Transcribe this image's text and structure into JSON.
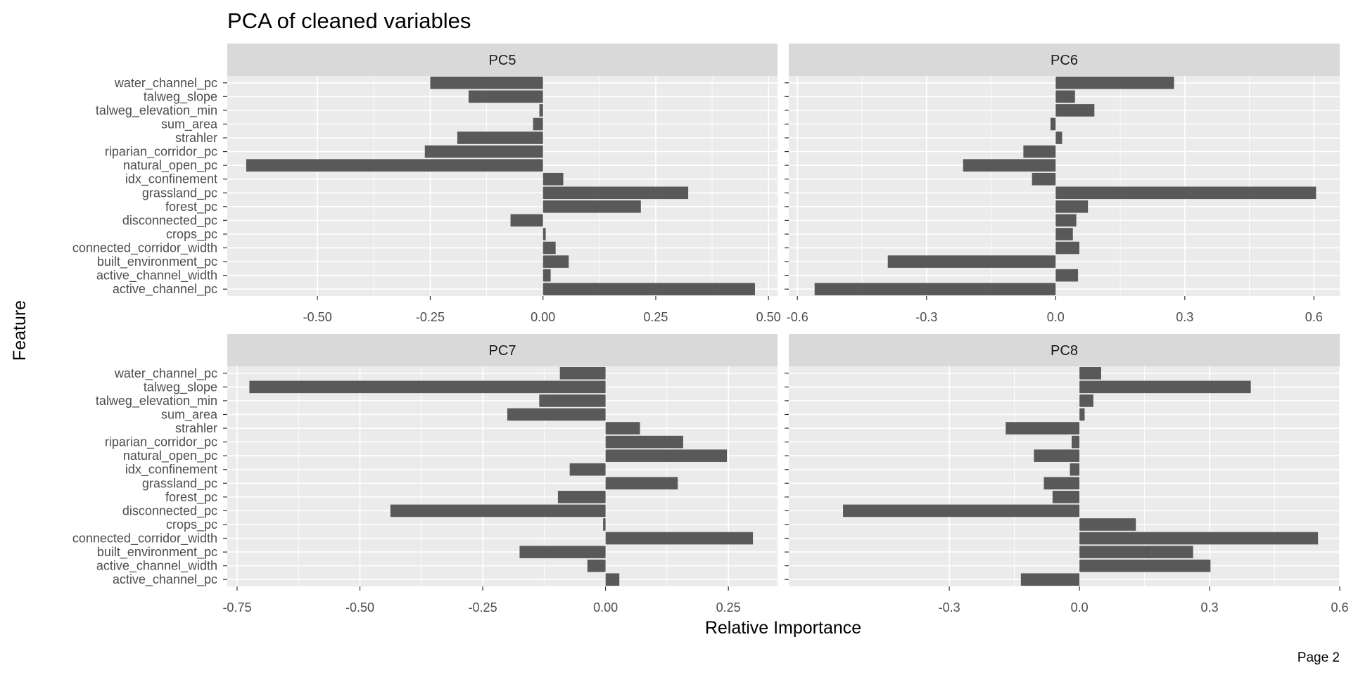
{
  "chart_data": {
    "type": "bar",
    "orientation": "horizontal",
    "title": "PCA of cleaned variables",
    "xlabel": "Relative Importance",
    "ylabel": "Feature",
    "caption": "Page 2",
    "grid": true,
    "facet_layout": "2x2",
    "bar_color": "#595959",
    "panel_background": "#ebebeb",
    "strip_background": "#d9d9d9",
    "features": [
      "water_channel_pc",
      "talweg_slope",
      "talweg_elevation_min",
      "sum_area",
      "strahler",
      "riparian_corridor_pc",
      "natural_open_pc",
      "idx_confinement",
      "grassland_pc",
      "forest_pc",
      "disconnected_pc",
      "crops_pc",
      "connected_corridor_width",
      "built_environment_pc",
      "active_channel_width",
      "active_channel_pc"
    ],
    "panels": [
      {
        "name": "PC5",
        "xlim": [
          -0.7,
          0.52
        ],
        "ticks": [
          -0.5,
          -0.25,
          0,
          0.25,
          0.5
        ],
        "tick_labels": [
          "-0.50",
          "-0.25",
          "0.00",
          "0.25",
          "0.50"
        ],
        "values": [
          -0.25,
          -0.165,
          -0.008,
          -0.022,
          -0.19,
          -0.262,
          -0.658,
          0.045,
          0.322,
          0.217,
          -0.072,
          0.006,
          0.028,
          0.057,
          0.017,
          0.47
        ]
      },
      {
        "name": "PC6",
        "xlim": [
          -0.62,
          0.66
        ],
        "ticks": [
          -0.6,
          -0.3,
          0,
          0.3,
          0.6
        ],
        "tick_labels": [
          "-0.6",
          "-0.3",
          "0.0",
          "0.3",
          "0.6"
        ],
        "values": [
          0.275,
          0.045,
          0.09,
          -0.012,
          0.015,
          -0.075,
          -0.215,
          -0.055,
          0.605,
          0.075,
          0.048,
          0.04,
          0.055,
          -0.39,
          0.052,
          -0.56
        ]
      },
      {
        "name": "PC7",
        "xlim": [
          -0.77,
          0.35
        ],
        "ticks": [
          -0.75,
          -0.5,
          -0.25,
          0,
          0.25
        ],
        "tick_labels": [
          "-0.75",
          "-0.50",
          "-0.25",
          "0.00",
          "0.25"
        ],
        "values": [
          -0.093,
          -0.725,
          -0.135,
          -0.2,
          0.07,
          0.158,
          0.247,
          -0.073,
          0.147,
          -0.097,
          -0.438,
          -0.005,
          0.3,
          -0.175,
          -0.037,
          0.028
        ]
      },
      {
        "name": "PC8",
        "xlim": [
          -0.67,
          0.6
        ],
        "ticks": [
          -0.3,
          0,
          0.3,
          0.6
        ],
        "tick_labels": [
          "-0.3",
          "0.0",
          "0.3",
          "0.6"
        ],
        "values": [
          0.05,
          0.395,
          0.032,
          0.012,
          -0.17,
          -0.018,
          -0.105,
          -0.022,
          -0.082,
          -0.062,
          -0.545,
          0.13,
          0.55,
          0.262,
          0.302,
          -0.135
        ]
      }
    ]
  }
}
